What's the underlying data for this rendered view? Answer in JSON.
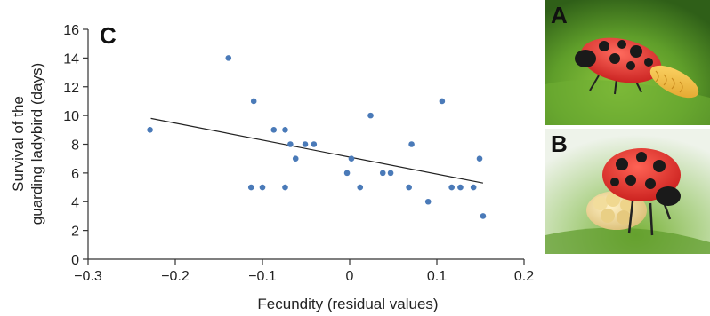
{
  "chart_data": {
    "type": "scatter",
    "panel_label": "C",
    "xlabel": "Fecundity (residual values)",
    "ylabel_line1": "Survival of the",
    "ylabel_line2": "guarding ladybird (days)",
    "xlim": [
      -0.3,
      0.2
    ],
    "ylim": [
      0,
      16
    ],
    "x_ticks": [
      -0.3,
      -0.2,
      -0.1,
      0,
      0.1,
      0.2
    ],
    "x_tick_labels": [
      "−0.3",
      "−0.2",
      "−0.1",
      "0",
      "0.1",
      "0.2"
    ],
    "y_ticks": [
      0,
      2,
      4,
      6,
      8,
      10,
      12,
      14,
      16
    ],
    "y_tick_labels": [
      "0",
      "2",
      "4",
      "6",
      "8",
      "10",
      "12",
      "14",
      "16"
    ],
    "point_color": "#4a7ab8",
    "trend_color": "#222222",
    "trendline": {
      "x": [
        -0.228,
        0.153
      ],
      "y": [
        9.8,
        5.3
      ]
    },
    "points": [
      {
        "x": -0.229,
        "y": 9
      },
      {
        "x": -0.139,
        "y": 14
      },
      {
        "x": -0.113,
        "y": 5
      },
      {
        "x": -0.11,
        "y": 11
      },
      {
        "x": -0.1,
        "y": 5
      },
      {
        "x": -0.087,
        "y": 9
      },
      {
        "x": -0.074,
        "y": 9
      },
      {
        "x": -0.074,
        "y": 5
      },
      {
        "x": -0.068,
        "y": 8
      },
      {
        "x": -0.062,
        "y": 7
      },
      {
        "x": -0.051,
        "y": 8
      },
      {
        "x": -0.041,
        "y": 8
      },
      {
        "x": -0.003,
        "y": 6
      },
      {
        "x": 0.002,
        "y": 7
      },
      {
        "x": 0.012,
        "y": 5
      },
      {
        "x": 0.024,
        "y": 10
      },
      {
        "x": 0.038,
        "y": 6
      },
      {
        "x": 0.047,
        "y": 6
      },
      {
        "x": 0.068,
        "y": 5
      },
      {
        "x": 0.071,
        "y": 8
      },
      {
        "x": 0.09,
        "y": 4
      },
      {
        "x": 0.106,
        "y": 11
      },
      {
        "x": 0.117,
        "y": 5
      },
      {
        "x": 0.127,
        "y": 5
      },
      {
        "x": 0.142,
        "y": 5
      },
      {
        "x": 0.149,
        "y": 7
      },
      {
        "x": 0.153,
        "y": 3
      }
    ]
  },
  "photos": [
    {
      "label": "A"
    },
    {
      "label": "B"
    }
  ]
}
